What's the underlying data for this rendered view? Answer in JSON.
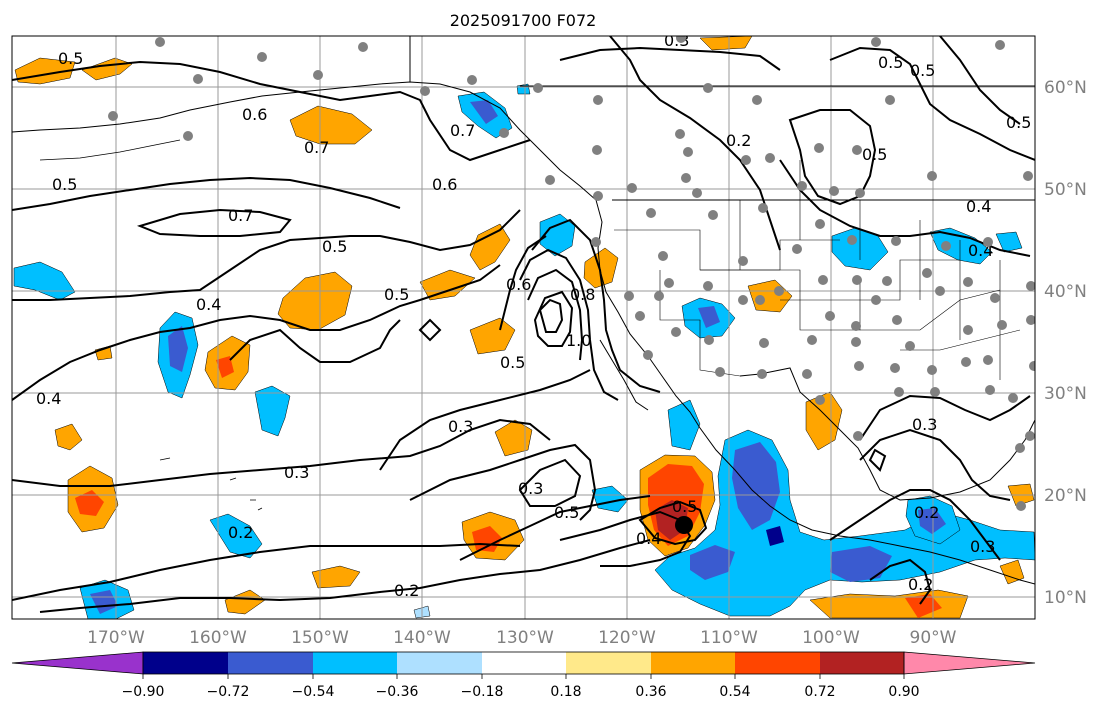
{
  "title": "2025091700 F072",
  "map": {
    "lon_labels": [
      "170°W",
      "160°W",
      "150°W",
      "140°W",
      "130°W",
      "120°W",
      "110°W",
      "100°W",
      "90°W"
    ],
    "lat_labels": [
      "60°N",
      "50°N",
      "40°N",
      "30°N",
      "20°N",
      "10°N"
    ],
    "contour_labels": [
      "0.5",
      "0.6",
      "0.7",
      "0.5",
      "0.7",
      "0.5",
      "0.4",
      "0.4",
      "0.7",
      "0.6",
      "0.5",
      "0.6",
      "0.8",
      "1.0",
      "0.5",
      "0.3",
      "0.3",
      "0.3",
      "0.5",
      "0.5",
      "0.4",
      "0.2",
      "0.2",
      "0.2",
      "0.3",
      "0.5",
      "0.5",
      "0.5",
      "0.5",
      "0.4",
      "0.4",
      "0.3",
      "0.2",
      "0.3",
      "0.2"
    ],
    "storm_marker": "tropical-cyclone-center",
    "colors": {
      "gridline": "#999999",
      "contour": "#000000",
      "station_dot": "#808080",
      "tick_label": "#808080"
    }
  },
  "colorbar": {
    "tick_labels": [
      "−0.90",
      "−0.72",
      "−0.54",
      "−0.36",
      "−0.18",
      "0.18",
      "0.36",
      "0.54",
      "0.72",
      "0.90"
    ],
    "bins": [
      {
        "color": "#9932cc"
      },
      {
        "color": "#00008b"
      },
      {
        "color": "#3a5bd0"
      },
      {
        "color": "#00bfff"
      },
      {
        "color": "#aee0ff"
      },
      {
        "color": "#ffffff"
      },
      {
        "color": "#ffe98a"
      },
      {
        "color": "#ffa500"
      },
      {
        "color": "#ff4500"
      },
      {
        "color": "#b22222"
      },
      {
        "color": "#ff88aa"
      }
    ]
  }
}
